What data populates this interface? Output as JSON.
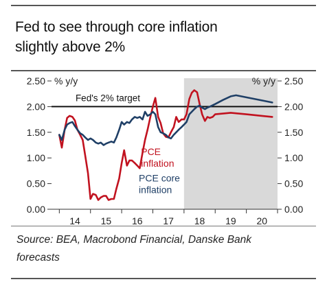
{
  "title_lines": [
    "Fed to see through core inflation",
    "slightly above 2%"
  ],
  "source_lines": [
    "Source: BEA, Macrobond Financial, Danske Bank",
    "forecasts"
  ],
  "colors": {
    "pce": "#c1121f",
    "core": "#1f3f66",
    "forecast_shade": "#d9d9d9",
    "target": "#111111",
    "axis": "#333333"
  },
  "chart_data": {
    "type": "line",
    "title": "Fed to see through core inflation slightly above 2%",
    "unit_left": "% y/y",
    "unit_right": "% y/y",
    "ylim": [
      0,
      2.5
    ],
    "yticks": [
      0,
      0.5,
      1,
      1.5,
      2,
      2.5
    ],
    "ytick_labels": [
      "0.00",
      "0.50",
      "1.00",
      "1.50",
      "2.00",
      "2.50"
    ],
    "xlim": [
      2013.75,
      2021.0
    ],
    "xticks": [
      14,
      15,
      16,
      17,
      18,
      19,
      20
    ],
    "xtick_labels": [
      "14",
      "15",
      "16",
      "17",
      "18",
      "19",
      "20"
    ],
    "forecast_start": 2018.0,
    "target_value": 2.0,
    "target_label": "Fed's 2% target",
    "grid": false,
    "series": [
      {
        "name": "PCE inflation",
        "label_lines": [
          "PCE",
          "inflation"
        ],
        "color": "#c1121f",
        "points": [
          [
            2014.0,
            1.45
          ],
          [
            2014.08,
            1.2
          ],
          [
            2014.17,
            1.55
          ],
          [
            2014.25,
            1.78
          ],
          [
            2014.33,
            1.82
          ],
          [
            2014.42,
            1.8
          ],
          [
            2014.5,
            1.73
          ],
          [
            2014.58,
            1.55
          ],
          [
            2014.67,
            1.45
          ],
          [
            2014.75,
            1.35
          ],
          [
            2014.83,
            1.05
          ],
          [
            2014.92,
            0.7
          ],
          [
            2015.0,
            0.2
          ],
          [
            2015.08,
            0.3
          ],
          [
            2015.17,
            0.28
          ],
          [
            2015.25,
            0.18
          ],
          [
            2015.33,
            0.23
          ],
          [
            2015.42,
            0.26
          ],
          [
            2015.5,
            0.26
          ],
          [
            2015.58,
            0.18
          ],
          [
            2015.67,
            0.2
          ],
          [
            2015.75,
            0.2
          ],
          [
            2015.83,
            0.4
          ],
          [
            2015.92,
            0.6
          ],
          [
            2016.0,
            0.9
          ],
          [
            2016.08,
            1.15
          ],
          [
            2016.17,
            0.85
          ],
          [
            2016.25,
            0.95
          ],
          [
            2016.33,
            0.95
          ],
          [
            2016.42,
            0.9
          ],
          [
            2016.5,
            0.85
          ],
          [
            2016.58,
            0.8
          ],
          [
            2016.67,
            1.1
          ],
          [
            2016.75,
            1.35
          ],
          [
            2016.83,
            1.55
          ],
          [
            2016.92,
            1.8
          ],
          [
            2017.0,
            2.0
          ],
          [
            2017.08,
            2.17
          ],
          [
            2017.17,
            1.8
          ],
          [
            2017.25,
            1.68
          ],
          [
            2017.33,
            1.48
          ],
          [
            2017.42,
            1.41
          ],
          [
            2017.5,
            1.4
          ],
          [
            2017.58,
            1.5
          ],
          [
            2017.67,
            1.6
          ],
          [
            2017.75,
            1.8
          ],
          [
            2017.83,
            1.7
          ],
          [
            2017.92,
            1.75
          ],
          [
            2018.0,
            1.75
          ],
          [
            2018.08,
            1.85
          ],
          [
            2018.17,
            2.15
          ],
          [
            2018.25,
            2.27
          ],
          [
            2018.33,
            2.32
          ],
          [
            2018.42,
            2.28
          ],
          [
            2018.5,
            2.05
          ],
          [
            2018.58,
            1.85
          ],
          [
            2018.67,
            1.72
          ],
          [
            2018.75,
            1.8
          ],
          [
            2018.83,
            1.78
          ],
          [
            2018.92,
            1.8
          ],
          [
            2019.0,
            1.85
          ],
          [
            2019.5,
            1.88
          ],
          [
            2020.0,
            1.85
          ],
          [
            2020.5,
            1.82
          ],
          [
            2020.83,
            1.8
          ]
        ]
      },
      {
        "name": "PCE core inflation",
        "label_lines": [
          "PCE core",
          "inflation"
        ],
        "color": "#1f3f66",
        "points": [
          [
            2014.0,
            1.45
          ],
          [
            2014.08,
            1.35
          ],
          [
            2014.17,
            1.55
          ],
          [
            2014.25,
            1.65
          ],
          [
            2014.33,
            1.68
          ],
          [
            2014.42,
            1.7
          ],
          [
            2014.5,
            1.62
          ],
          [
            2014.58,
            1.55
          ],
          [
            2014.67,
            1.48
          ],
          [
            2014.75,
            1.45
          ],
          [
            2014.83,
            1.4
          ],
          [
            2014.92,
            1.35
          ],
          [
            2015.0,
            1.38
          ],
          [
            2015.08,
            1.35
          ],
          [
            2015.17,
            1.3
          ],
          [
            2015.25,
            1.28
          ],
          [
            2015.33,
            1.3
          ],
          [
            2015.42,
            1.25
          ],
          [
            2015.5,
            1.28
          ],
          [
            2015.58,
            1.3
          ],
          [
            2015.67,
            1.32
          ],
          [
            2015.75,
            1.3
          ],
          [
            2015.83,
            1.4
          ],
          [
            2015.92,
            1.55
          ],
          [
            2016.0,
            1.7
          ],
          [
            2016.08,
            1.65
          ],
          [
            2016.17,
            1.7
          ],
          [
            2016.25,
            1.68
          ],
          [
            2016.33,
            1.75
          ],
          [
            2016.42,
            1.8
          ],
          [
            2016.5,
            1.78
          ],
          [
            2016.58,
            1.8
          ],
          [
            2016.67,
            1.75
          ],
          [
            2016.75,
            1.9
          ],
          [
            2016.83,
            1.82
          ],
          [
            2016.92,
            1.85
          ],
          [
            2017.0,
            1.9
          ],
          [
            2017.08,
            1.85
          ],
          [
            2017.17,
            1.6
          ],
          [
            2017.25,
            1.5
          ],
          [
            2017.33,
            1.48
          ],
          [
            2017.42,
            1.45
          ],
          [
            2017.5,
            1.4
          ],
          [
            2017.58,
            1.38
          ],
          [
            2017.67,
            1.45
          ],
          [
            2017.75,
            1.5
          ],
          [
            2017.83,
            1.55
          ],
          [
            2017.92,
            1.6
          ],
          [
            2018.0,
            1.65
          ],
          [
            2018.08,
            1.7
          ],
          [
            2018.17,
            1.85
          ],
          [
            2018.25,
            1.9
          ],
          [
            2018.33,
            1.95
          ],
          [
            2018.42,
            2.0
          ],
          [
            2018.5,
            2.02
          ],
          [
            2018.58,
            1.98
          ],
          [
            2018.67,
            1.95
          ],
          [
            2018.75,
            1.98
          ],
          [
            2018.83,
            2.0
          ],
          [
            2019.0,
            2.05
          ],
          [
            2019.25,
            2.13
          ],
          [
            2019.5,
            2.2
          ],
          [
            2019.67,
            2.22
          ],
          [
            2020.0,
            2.18
          ],
          [
            2020.5,
            2.12
          ],
          [
            2020.83,
            2.08
          ]
        ]
      }
    ]
  }
}
